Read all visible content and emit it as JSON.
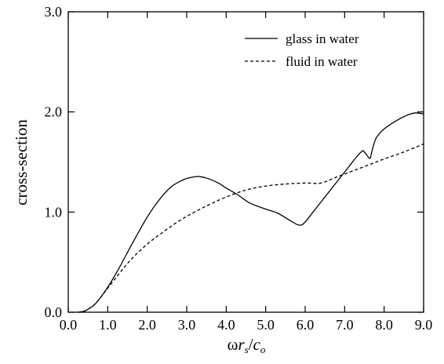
{
  "chart_data": {
    "type": "line",
    "title": "",
    "xlabel_parts": {
      "omega": "ω",
      "r": "r",
      "r_sub": "s",
      "slash": "/",
      "c": "c",
      "c_sub": "o"
    },
    "ylabel": "cross-section",
    "xlim": [
      0.0,
      9.0
    ],
    "ylim": [
      0.0,
      3.0
    ],
    "xticks": [
      "0.0",
      "1.0",
      "2.0",
      "3.0",
      "4.0",
      "5.0",
      "6.0",
      "7.0",
      "8.0",
      "9.0"
    ],
    "yticks": [
      "0.0",
      "1.0",
      "2.0",
      "3.0"
    ],
    "grid": false,
    "legend_position": "top-right",
    "series": [
      {
        "name": "glass in water",
        "style": "solid",
        "color": "#000000",
        "x": [
          0.25,
          0.4,
          0.5,
          0.7,
          1.0,
          1.3,
          1.6,
          2.0,
          2.3,
          2.6,
          2.9,
          3.1,
          3.3,
          3.5,
          3.8,
          4.0,
          4.3,
          4.6,
          5.0,
          5.3,
          5.6,
          5.8,
          5.9,
          6.0,
          6.2,
          6.5,
          6.8,
          7.1,
          7.3,
          7.45,
          7.5,
          7.6,
          7.65,
          7.7,
          7.8,
          8.0,
          8.3,
          8.6,
          8.8,
          9.0
        ],
        "y": [
          0.0,
          0.01,
          0.03,
          0.09,
          0.25,
          0.45,
          0.67,
          0.95,
          1.12,
          1.25,
          1.32,
          1.345,
          1.355,
          1.34,
          1.29,
          1.24,
          1.17,
          1.09,
          1.03,
          0.99,
          0.92,
          0.875,
          0.87,
          0.9,
          1.0,
          1.15,
          1.3,
          1.45,
          1.55,
          1.61,
          1.6,
          1.55,
          1.54,
          1.62,
          1.74,
          1.83,
          1.91,
          1.97,
          1.99,
          1.98
        ]
      },
      {
        "name": "fluid in water",
        "style": "dashed",
        "color": "#000000",
        "x": [
          0.25,
          0.4,
          0.5,
          0.7,
          1.0,
          1.3,
          1.6,
          2.0,
          2.4,
          2.8,
          3.2,
          3.6,
          4.0,
          4.5,
          5.0,
          5.5,
          6.0,
          6.4,
          6.8,
          7.2,
          7.6,
          8.0,
          8.5,
          9.0
        ],
        "y": [
          0.0,
          0.01,
          0.03,
          0.09,
          0.24,
          0.39,
          0.53,
          0.68,
          0.8,
          0.91,
          1.0,
          1.08,
          1.15,
          1.22,
          1.26,
          1.28,
          1.29,
          1.29,
          1.35,
          1.41,
          1.47,
          1.53,
          1.6,
          1.68
        ]
      }
    ]
  }
}
